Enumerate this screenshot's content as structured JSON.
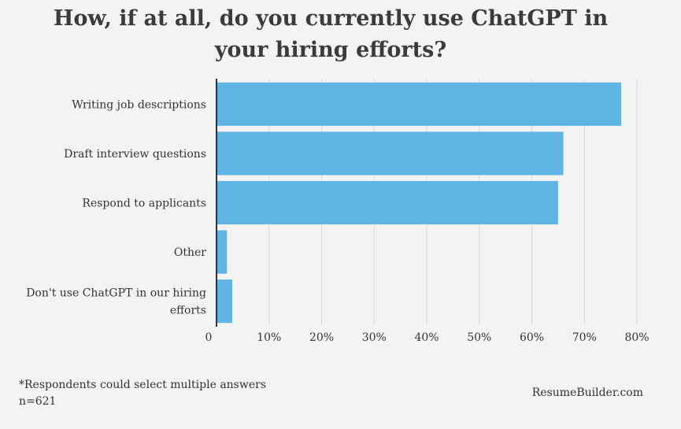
{
  "chart_data": {
    "type": "bar",
    "orientation": "horizontal",
    "title": "How, if at all, do you currently use ChatGPT in your hiring efforts?",
    "title_lines": [
      "How, if at all, do you currently use ChatGPT in",
      "your hiring efforts?"
    ],
    "categories": [
      "Writing job descriptions",
      "Draft interview questions",
      "Respond to applicants",
      "Other",
      "Don't use ChatGPT in our hiring efforts"
    ],
    "category_lines": [
      [
        "Writing job descriptions"
      ],
      [
        "Draft interview questions"
      ],
      [
        "Respond to applicants"
      ],
      [
        "Other"
      ],
      [
        "Don't use ChatGPT in our hiring",
        "efforts"
      ]
    ],
    "values": [
      77,
      66,
      65,
      2,
      3
    ],
    "xlim": [
      0,
      80
    ],
    "ticks": [
      0,
      10,
      20,
      30,
      40,
      50,
      60,
      70,
      80
    ],
    "tick_labels": [
      "0",
      "10%",
      "20%",
      "30%",
      "40%",
      "50%",
      "60%",
      "70%",
      "80%"
    ],
    "xlabel": "",
    "ylabel": "",
    "grid": true,
    "bar_color": "#5eb5e4",
    "grid_color": "#d9d9d9",
    "axis_color": "#333333"
  },
  "footnote": {
    "line1": "*Respondents could select multiple answers",
    "line2": "n=621"
  },
  "source": "ResumeBuilder.com"
}
